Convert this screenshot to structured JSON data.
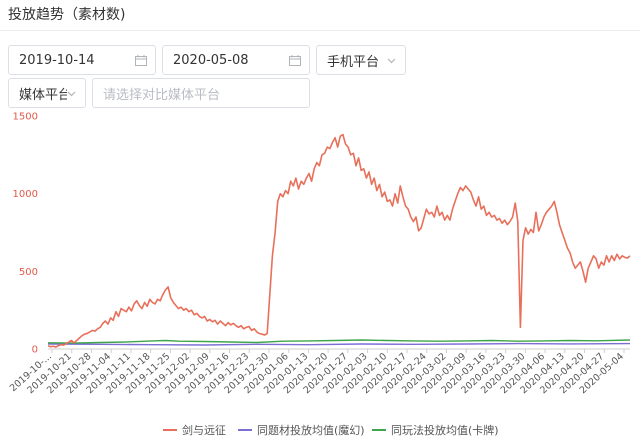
{
  "page": {
    "title": "投放趋势（素材数)"
  },
  "filters": {
    "start_date": "2019-10-14",
    "end_date": "2020-05-08",
    "platform_select": "手机平台",
    "media_select": "媒体平台",
    "compare_placeholder": "请选择对比媒体平台"
  },
  "icons": {
    "calendar": "calendar-icon",
    "dropdown": "chevron-down-icon"
  },
  "chart_data": {
    "type": "line",
    "ylim": [
      0,
      1500
    ],
    "yticks": [
      0,
      500,
      1000,
      1500
    ],
    "grid": false,
    "legend_position": "bottom",
    "xticks": [
      "2019-10-...",
      "2019-10-21",
      "2019-10-28",
      "2019-11-04",
      "2019-11-11",
      "2019-11-18",
      "2019-11-25",
      "2019-12-02",
      "2019-12-09",
      "2019-12-16",
      "2019-12-23",
      "2019-12-30",
      "2020-01-06",
      "2020-01-13",
      "2020-01-20",
      "2020-01-27",
      "2020-02-03",
      "2020-02-10",
      "2020-02-17",
      "2020-02-24",
      "2020-03-02",
      "2020-03-09",
      "2020-03-16",
      "2020-03-23",
      "2020-03-30",
      "2020-04-06",
      "2020-04-13",
      "2020-04-20",
      "2020-04-27",
      "2020-05-04"
    ],
    "series": [
      {
        "name": "剑与远征",
        "color": "#e8705a",
        "values": [
          [
            0,
            20
          ],
          [
            1,
            15
          ],
          [
            2,
            18
          ],
          [
            3,
            12
          ],
          [
            4,
            22
          ],
          [
            5,
            28
          ],
          [
            6,
            25
          ],
          [
            7,
            35
          ],
          [
            8,
            45
          ],
          [
            9,
            55
          ],
          [
            10,
            40
          ],
          [
            11,
            55
          ],
          [
            12,
            70
          ],
          [
            13,
            85
          ],
          [
            14,
            95
          ],
          [
            15,
            100
          ],
          [
            16,
            110
          ],
          [
            17,
            120
          ],
          [
            18,
            115
          ],
          [
            19,
            130
          ],
          [
            20,
            140
          ],
          [
            21,
            165
          ],
          [
            22,
            180
          ],
          [
            23,
            160
          ],
          [
            24,
            200
          ],
          [
            25,
            185
          ],
          [
            26,
            240
          ],
          [
            27,
            210
          ],
          [
            28,
            260
          ],
          [
            29,
            250
          ],
          [
            30,
            240
          ],
          [
            31,
            270
          ],
          [
            32,
            245
          ],
          [
            33,
            290
          ],
          [
            34,
            310
          ],
          [
            35,
            280
          ],
          [
            36,
            260
          ],
          [
            37,
            300
          ],
          [
            38,
            275
          ],
          [
            39,
            320
          ],
          [
            40,
            300
          ],
          [
            41,
            290
          ],
          [
            42,
            320
          ],
          [
            43,
            310
          ],
          [
            44,
            350
          ],
          [
            45,
            380
          ],
          [
            46,
            400
          ],
          [
            47,
            330
          ],
          [
            48,
            300
          ],
          [
            49,
            280
          ],
          [
            50,
            260
          ],
          [
            51,
            270
          ],
          [
            52,
            250
          ],
          [
            53,
            260
          ],
          [
            54,
            240
          ],
          [
            55,
            250
          ],
          [
            56,
            220
          ],
          [
            57,
            230
          ],
          [
            58,
            210
          ],
          [
            59,
            200
          ],
          [
            60,
            210
          ],
          [
            61,
            180
          ],
          [
            62,
            190
          ],
          [
            63,
            175
          ],
          [
            64,
            185
          ],
          [
            65,
            160
          ],
          [
            66,
            180
          ],
          [
            67,
            165
          ],
          [
            68,
            150
          ],
          [
            69,
            170
          ],
          [
            70,
            155
          ],
          [
            71,
            165
          ],
          [
            72,
            150
          ],
          [
            73,
            140
          ],
          [
            74,
            150
          ],
          [
            75,
            130
          ],
          [
            76,
            140
          ],
          [
            77,
            145
          ],
          [
            78,
            120
          ],
          [
            79,
            130
          ],
          [
            80,
            110
          ],
          [
            81,
            100
          ],
          [
            82,
            95
          ],
          [
            83,
            90
          ],
          [
            84,
            100
          ],
          [
            85,
            350
          ],
          [
            86,
            600
          ],
          [
            87,
            750
          ],
          [
            88,
            950
          ],
          [
            89,
            1000
          ],
          [
            90,
            980
          ],
          [
            91,
            1020
          ],
          [
            92,
            1000
          ],
          [
            93,
            1080
          ],
          [
            94,
            1050
          ],
          [
            95,
            1100
          ],
          [
            96,
            1030
          ],
          [
            97,
            1080
          ],
          [
            98,
            1060
          ],
          [
            99,
            1100
          ],
          [
            100,
            1130
          ],
          [
            101,
            1080
          ],
          [
            102,
            1160
          ],
          [
            103,
            1200
          ],
          [
            104,
            1180
          ],
          [
            105,
            1250
          ],
          [
            106,
            1260
          ],
          [
            107,
            1300
          ],
          [
            108,
            1290
          ],
          [
            109,
            1330
          ],
          [
            110,
            1360
          ],
          [
            111,
            1300
          ],
          [
            112,
            1370
          ],
          [
            113,
            1380
          ],
          [
            114,
            1320
          ],
          [
            115,
            1300
          ],
          [
            116,
            1250
          ],
          [
            117,
            1260
          ],
          [
            118,
            1180
          ],
          [
            119,
            1230
          ],
          [
            120,
            1150
          ],
          [
            121,
            1160
          ],
          [
            122,
            1100
          ],
          [
            123,
            1140
          ],
          [
            124,
            1060
          ],
          [
            125,
            1100
          ],
          [
            126,
            1020
          ],
          [
            127,
            1060
          ],
          [
            128,
            980
          ],
          [
            129,
            1010
          ],
          [
            130,
            950
          ],
          [
            131,
            960
          ],
          [
            132,
            920
          ],
          [
            133,
            1000
          ],
          [
            134,
            940
          ],
          [
            135,
            1050
          ],
          [
            136,
            980
          ],
          [
            137,
            920
          ],
          [
            138,
            900
          ],
          [
            139,
            850
          ],
          [
            140,
            820
          ],
          [
            141,
            850
          ],
          [
            142,
            760
          ],
          [
            143,
            780
          ],
          [
            144,
            840
          ],
          [
            145,
            900
          ],
          [
            146,
            870
          ],
          [
            147,
            880
          ],
          [
            148,
            850
          ],
          [
            149,
            920
          ],
          [
            150,
            860
          ],
          [
            151,
            880
          ],
          [
            152,
            830
          ],
          [
            153,
            860
          ],
          [
            154,
            830
          ],
          [
            155,
            900
          ],
          [
            156,
            950
          ],
          [
            157,
            1000
          ],
          [
            158,
            1040
          ],
          [
            159,
            1020
          ],
          [
            160,
            1050
          ],
          [
            161,
            1030
          ],
          [
            162,
            1010
          ],
          [
            163,
            960
          ],
          [
            164,
            920
          ],
          [
            165,
            980
          ],
          [
            166,
            900
          ],
          [
            167,
            920
          ],
          [
            168,
            860
          ],
          [
            169,
            880
          ],
          [
            170,
            850
          ],
          [
            171,
            860
          ],
          [
            172,
            830
          ],
          [
            173,
            840
          ],
          [
            174,
            810
          ],
          [
            175,
            830
          ],
          [
            176,
            800
          ],
          [
            177,
            820
          ],
          [
            178,
            850
          ],
          [
            179,
            940
          ],
          [
            180,
            820
          ],
          [
            181,
            140
          ],
          [
            182,
            700
          ],
          [
            183,
            780
          ],
          [
            184,
            740
          ],
          [
            185,
            770
          ],
          [
            186,
            750
          ],
          [
            187,
            880
          ],
          [
            188,
            760
          ],
          [
            189,
            800
          ],
          [
            190,
            850
          ],
          [
            191,
            880
          ],
          [
            192,
            900
          ],
          [
            193,
            920
          ],
          [
            194,
            950
          ],
          [
            195,
            880
          ],
          [
            196,
            800
          ],
          [
            197,
            750
          ],
          [
            198,
            700
          ],
          [
            199,
            650
          ],
          [
            200,
            620
          ],
          [
            201,
            560
          ],
          [
            202,
            520
          ],
          [
            203,
            540
          ],
          [
            204,
            560
          ],
          [
            205,
            500
          ],
          [
            206,
            430
          ],
          [
            207,
            520
          ],
          [
            208,
            560
          ],
          [
            209,
            600
          ],
          [
            210,
            580
          ],
          [
            211,
            520
          ],
          [
            212,
            560
          ],
          [
            213,
            540
          ],
          [
            214,
            600
          ],
          [
            215,
            560
          ],
          [
            216,
            600
          ],
          [
            217,
            570
          ],
          [
            218,
            610
          ],
          [
            219,
            580
          ],
          [
            220,
            600
          ],
          [
            221,
            590
          ],
          [
            222,
            585
          ],
          [
            223,
            600
          ]
        ]
      },
      {
        "name": "同题材投放均值(魔幻)",
        "color": "#7b6fd6",
        "values": [
          [
            0,
            32
          ],
          [
            20,
            30
          ],
          [
            40,
            28
          ],
          [
            60,
            26
          ],
          [
            80,
            30
          ],
          [
            100,
            28
          ],
          [
            120,
            32
          ],
          [
            140,
            30
          ],
          [
            160,
            32
          ],
          [
            180,
            35
          ],
          [
            200,
            33
          ],
          [
            223,
            35
          ]
        ]
      },
      {
        "name": "同玩法投放均值(卡牌)",
        "color": "#3fa54a",
        "values": [
          [
            0,
            40
          ],
          [
            10,
            38
          ],
          [
            20,
            42
          ],
          [
            30,
            45
          ],
          [
            40,
            52
          ],
          [
            45,
            55
          ],
          [
            50,
            50
          ],
          [
            60,
            48
          ],
          [
            70,
            45
          ],
          [
            80,
            42
          ],
          [
            90,
            50
          ],
          [
            100,
            52
          ],
          [
            110,
            55
          ],
          [
            120,
            58
          ],
          [
            130,
            55
          ],
          [
            140,
            52
          ],
          [
            150,
            50
          ],
          [
            160,
            52
          ],
          [
            170,
            55
          ],
          [
            180,
            50
          ],
          [
            190,
            52
          ],
          [
            200,
            55
          ],
          [
            210,
            53
          ],
          [
            223,
            58
          ]
        ]
      }
    ]
  }
}
